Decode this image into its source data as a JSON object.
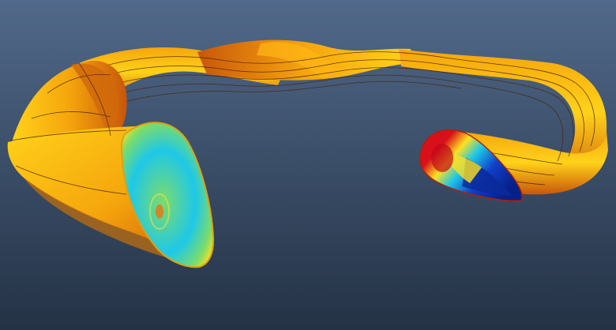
{
  "scene": {
    "subject": "twisted-ribbon-surface",
    "colors": {
      "background_top": "#51698a",
      "background_bottom": "#243245",
      "surface_light": "#ffd21a",
      "surface_mid": "#f5a50c",
      "surface_dark": "#c8560a",
      "contour_line": "#4a2408",
      "section_red": "#d8101a",
      "section_yellow": "#ffe020",
      "section_green": "#7cdc6a",
      "section_cyan": "#1ec8e8",
      "section_blue": "#1040c8",
      "section_navy": "#08208a"
    }
  }
}
